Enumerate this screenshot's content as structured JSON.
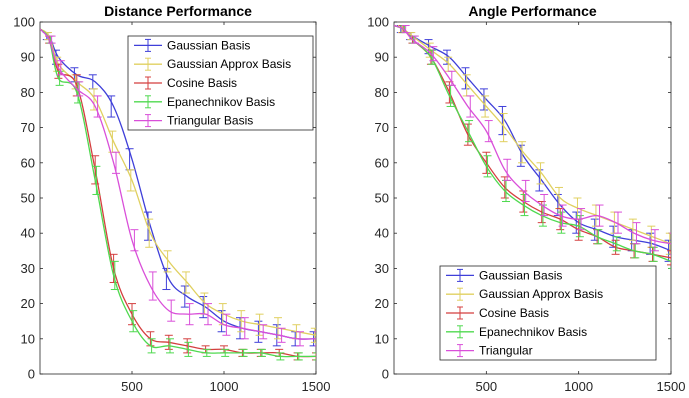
{
  "chart_data": [
    {
      "type": "line",
      "title": "Distance Performance",
      "xlabel": "",
      "ylabel": "",
      "xlim": [
        0,
        1500
      ],
      "ylim": [
        0,
        100
      ],
      "x_ticks": [
        500,
        1000,
        1500
      ],
      "y_ticks": [
        0,
        10,
        20,
        30,
        40,
        50,
        60,
        70,
        80,
        90,
        100
      ],
      "grid": false,
      "legend_position": "top-right",
      "x": [
        0,
        50,
        100,
        200,
        300,
        400,
        500,
        600,
        700,
        800,
        900,
        1000,
        1100,
        1200,
        1300,
        1400,
        1500
      ],
      "series": [
        {
          "name": "Gaussian Basis",
          "color": "#3f3fd9",
          "values": [
            98,
            96,
            90,
            85,
            83,
            76,
            61,
            42,
            27,
            22,
            19,
            15,
            13,
            12,
            11,
            10,
            10
          ],
          "errors": [
            1,
            1,
            2,
            2,
            2,
            3,
            3,
            4,
            3,
            3,
            3,
            3,
            3,
            3,
            3,
            2,
            2
          ]
        },
        {
          "name": "Gaussian Approx Basis",
          "color": "#e0d060",
          "values": [
            98,
            96,
            88,
            83,
            78,
            66,
            55,
            40,
            32,
            26,
            20,
            17,
            15,
            14,
            13,
            12,
            11
          ],
          "errors": [
            1,
            1,
            2,
            2,
            3,
            3,
            3,
            4,
            3,
            3,
            3,
            3,
            3,
            3,
            3,
            2,
            2
          ]
        },
        {
          "name": "Cosine Basis",
          "color": "#d43f3f",
          "values": [
            98,
            95,
            86,
            82,
            58,
            30,
            17,
            10,
            9,
            8,
            7,
            7,
            6,
            6,
            6,
            5,
            5
          ],
          "errors": [
            1,
            1,
            2,
            3,
            4,
            4,
            3,
            2,
            2,
            2,
            1,
            1,
            1,
            1,
            1,
            1,
            1
          ]
        },
        {
          "name": "Epanechnikov Basis",
          "color": "#4fd94f",
          "values": [
            98,
            95,
            84,
            80,
            55,
            28,
            15,
            8,
            8,
            7,
            6,
            6,
            6,
            6,
            5,
            5,
            5
          ],
          "errors": [
            1,
            1,
            2,
            3,
            4,
            4,
            3,
            2,
            2,
            2,
            1,
            1,
            1,
            1,
            1,
            1,
            1
          ]
        },
        {
          "name": "Triangular Basis",
          "color": "#d94fd9",
          "values": [
            98,
            95,
            87,
            81,
            76,
            60,
            38,
            25,
            18,
            17,
            17,
            14,
            13,
            12,
            11,
            10,
            10
          ],
          "errors": [
            1,
            1,
            2,
            2,
            3,
            3,
            3,
            4,
            3,
            3,
            3,
            3,
            3,
            2,
            2,
            2,
            2
          ]
        }
      ]
    },
    {
      "type": "line",
      "title": "Angle Performance",
      "xlabel": "",
      "ylabel": "",
      "xlim": [
        0,
        1500
      ],
      "ylim": [
        0,
        100
      ],
      "x_ticks": [
        500,
        1000,
        1500
      ],
      "y_ticks": [
        0,
        10,
        20,
        30,
        40,
        50,
        60,
        70,
        80,
        90,
        100
      ],
      "grid": false,
      "legend_position": "bottom-left",
      "x": [
        0,
        50,
        100,
        200,
        300,
        400,
        500,
        600,
        700,
        800,
        900,
        1000,
        1100,
        1200,
        1300,
        1400,
        1500
      ],
      "series": [
        {
          "name": "Gaussian Basis",
          "color": "#3f3fd9",
          "values": [
            99,
            98,
            96,
            93,
            90,
            84,
            78,
            72,
            62,
            55,
            48,
            43,
            41,
            39,
            38,
            37,
            35
          ],
          "errors": [
            1,
            1,
            1,
            2,
            2,
            3,
            3,
            4,
            3,
            3,
            3,
            3,
            3,
            3,
            3,
            3,
            3
          ]
        },
        {
          "name": "Gaussian Approx Basis",
          "color": "#e0d060",
          "values": [
            99,
            98,
            96,
            92,
            88,
            82,
            76,
            70,
            63,
            57,
            50,
            47,
            45,
            43,
            41,
            39,
            37
          ],
          "errors": [
            1,
            1,
            1,
            2,
            2,
            3,
            3,
            4,
            3,
            3,
            3,
            3,
            3,
            3,
            3,
            3,
            3
          ]
        },
        {
          "name": "Cosine Basis",
          "color": "#d43f3f",
          "values": [
            99,
            98,
            95,
            90,
            80,
            68,
            60,
            53,
            49,
            46,
            44,
            41,
            39,
            36,
            35,
            34,
            33
          ],
          "errors": [
            1,
            1,
            1,
            2,
            3,
            3,
            3,
            3,
            3,
            3,
            3,
            3,
            2,
            2,
            2,
            2,
            2
          ]
        },
        {
          "name": "Epanechnikov Basis",
          "color": "#4fd94f",
          "values": [
            99,
            98,
            95,
            90,
            79,
            69,
            59,
            52,
            48,
            45,
            43,
            42,
            39,
            37,
            35,
            34,
            32
          ],
          "errors": [
            1,
            1,
            1,
            2,
            3,
            3,
            3,
            3,
            3,
            3,
            3,
            3,
            2,
            2,
            2,
            2,
            2
          ]
        },
        {
          "name": "Triangular",
          "color": "#d94fd9",
          "values": [
            99,
            98,
            95,
            91,
            84,
            76,
            69,
            58,
            52,
            48,
            45,
            44,
            45,
            43,
            40,
            38,
            37
          ],
          "errors": [
            1,
            1,
            1,
            2,
            2,
            3,
            3,
            3,
            3,
            3,
            3,
            3,
            3,
            3,
            3,
            3,
            3
          ]
        }
      ]
    }
  ]
}
